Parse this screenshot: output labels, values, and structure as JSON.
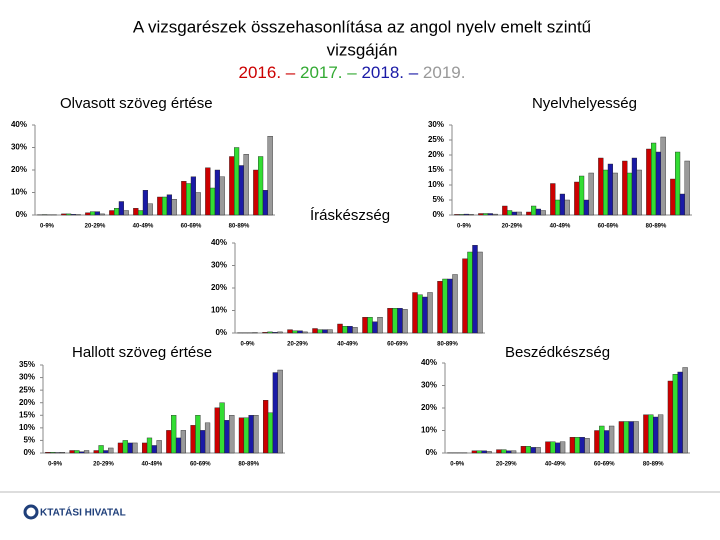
{
  "header": {
    "title_lines": [
      "A vizsgarészek összehasonlítása az angol nyelv emelt szintű",
      "vizsgáján"
    ],
    "years": [
      "2016. –",
      "2017. –",
      "2018. –",
      "2019."
    ]
  },
  "logo": "KTATÁSI HIVATAL",
  "chart_data": [
    {
      "type": "bar",
      "title": "Olvasott szöveg értése",
      "categories": [
        "0-9%",
        null,
        "20-29%",
        null,
        "40-49%",
        null,
        "60-69%",
        null,
        "80-89%",
        null
      ],
      "series": [
        {
          "color": "#cc0000",
          "values": [
            0.1,
            0.5,
            1,
            2,
            3,
            8,
            15,
            21,
            26,
            20
          ]
        },
        {
          "color": "#33dd33",
          "values": [
            0.2,
            0.5,
            1.5,
            3,
            2,
            8,
            14,
            12,
            30,
            26
          ]
        },
        {
          "color": "#1a1aa6",
          "values": [
            0.1,
            0.3,
            1.5,
            6,
            11,
            9,
            17,
            20,
            22,
            11
          ]
        },
        {
          "color": "#9a9a9a",
          "values": [
            0.1,
            0.2,
            0.5,
            2,
            5,
            7,
            10,
            17,
            27,
            35
          ]
        }
      ],
      "ylim": [
        0,
        40
      ],
      "yticks": [
        {
          "value": 0,
          "label": "0%"
        },
        {
          "value": 10,
          "label": "10%"
        },
        {
          "value": 20,
          "label": "20%"
        },
        {
          "value": 30,
          "label": "30%"
        },
        {
          "value": 40,
          "label": "40%"
        }
      ],
      "grid": false
    },
    {
      "type": "bar",
      "title": "Nyelvhelyesség",
      "categories": [
        "0-9%",
        null,
        "20-29%",
        null,
        "40-49%",
        null,
        "60-69%",
        null,
        "80-89%",
        null
      ],
      "series": [
        {
          "color": "#cc0000",
          "values": [
            0.2,
            0.5,
            3,
            1,
            10.5,
            11,
            19,
            18,
            22,
            12
          ]
        },
        {
          "color": "#33dd33",
          "values": [
            0.2,
            0.5,
            1.5,
            3,
            5,
            13,
            15,
            14,
            24,
            21
          ]
        },
        {
          "color": "#1a1aa6",
          "values": [
            0.3,
            0.5,
            1,
            2,
            7,
            5,
            17,
            19,
            21,
            7
          ]
        },
        {
          "color": "#9a9a9a",
          "values": [
            0.2,
            0.3,
            1,
            1.5,
            5,
            14,
            14,
            15,
            26,
            18
          ]
        }
      ],
      "ylim": [
        0,
        30
      ],
      "yticks": [
        {
          "value": 0,
          "label": "0%"
        },
        {
          "value": 5,
          "label": "5%"
        },
        {
          "value": 10,
          "label": "10%"
        },
        {
          "value": 15,
          "label": "15%"
        },
        {
          "value": 20,
          "label": "20%"
        },
        {
          "value": 25,
          "label": "25%"
        },
        {
          "value": 30,
          "label": "30%"
        }
      ],
      "grid": false
    },
    {
      "type": "bar",
      "title": "Íráskészség",
      "categories": [
        "0-9%",
        null,
        "20-29%",
        null,
        "40-49%",
        null,
        "60-69%",
        null,
        "80-89%",
        null
      ],
      "series": [
        {
          "color": "#cc0000",
          "values": [
            0.1,
            0.3,
            1.5,
            2,
            4,
            7,
            11,
            18,
            23,
            33
          ]
        },
        {
          "color": "#33dd33",
          "values": [
            0.1,
            0.5,
            1,
            1.5,
            3,
            7,
            11,
            17,
            24,
            36
          ]
        },
        {
          "color": "#1a1aa6",
          "values": [
            0.1,
            0.3,
            1,
            1.5,
            3,
            5,
            11,
            16,
            24,
            39
          ]
        },
        {
          "color": "#9a9a9a",
          "values": [
            0.2,
            0.5,
            0.5,
            1.5,
            2.5,
            7,
            10.5,
            18,
            26,
            36
          ]
        }
      ],
      "ylim": [
        0,
        40
      ],
      "yticks": [
        {
          "value": 0,
          "label": "0%"
        },
        {
          "value": 10,
          "label": "10%"
        },
        {
          "value": 20,
          "label": "20%"
        },
        {
          "value": 30,
          "label": "30%"
        },
        {
          "value": 40,
          "label": "40%"
        }
      ],
      "grid": false
    },
    {
      "type": "bar",
      "title": "Hallott szöveg értése",
      "categories": [
        "0-9%",
        null,
        "20-29%",
        null,
        "40-49%",
        null,
        "60-69%",
        null,
        "80-89%",
        null
      ],
      "series": [
        {
          "color": "#cc0000",
          "values": [
            0.3,
            1,
            1,
            4,
            4,
            9,
            11,
            18,
            14,
            21
          ]
        },
        {
          "color": "#33dd33",
          "values": [
            0.3,
            1,
            3,
            5,
            6,
            15,
            15,
            20,
            14,
            16
          ]
        },
        {
          "color": "#1a1aa6",
          "values": [
            0.2,
            0.5,
            1,
            4,
            3,
            6,
            9,
            13,
            15,
            32
          ]
        },
        {
          "color": "#9a9a9a",
          "values": [
            0.3,
            1,
            2,
            4,
            5,
            9,
            12,
            15,
            15,
            33
          ]
        }
      ],
      "ylim": [
        0,
        35
      ],
      "yticks": [
        {
          "value": 0,
          "label": "0%"
        },
        {
          "value": 5,
          "label": "5%"
        },
        {
          "value": 10,
          "label": "10%"
        },
        {
          "value": 15,
          "label": "15%"
        },
        {
          "value": 20,
          "label": "20%"
        },
        {
          "value": 25,
          "label": "25%"
        },
        {
          "value": 30,
          "label": "30%"
        },
        {
          "value": 35,
          "label": "35%"
        }
      ],
      "grid": false
    },
    {
      "type": "bar",
      "title": "Beszédkészség",
      "categories": [
        "0-9%",
        null,
        "20-29%",
        null,
        "40-49%",
        null,
        "60-69%",
        null,
        "80-89%",
        null
      ],
      "series": [
        {
          "color": "#cc0000",
          "values": [
            0.1,
            1,
            1.5,
            3,
            5,
            7,
            10,
            14,
            17,
            32
          ]
        },
        {
          "color": "#33dd33",
          "values": [
            0.1,
            1,
            1.5,
            3,
            5,
            7,
            12,
            14,
            17,
            35
          ]
        },
        {
          "color": "#1a1aa6",
          "values": [
            0.1,
            1,
            1,
            2.5,
            4.5,
            7,
            10,
            14,
            16,
            36
          ]
        },
        {
          "color": "#9a9a9a",
          "values": [
            0.1,
            0.7,
            1,
            2.5,
            5,
            6.5,
            12,
            14,
            17,
            38
          ]
        }
      ],
      "ylim": [
        0,
        40
      ],
      "yticks": [
        {
          "value": 0,
          "label": "0%"
        },
        {
          "value": 10,
          "label": "10%"
        },
        {
          "value": 20,
          "label": "20%"
        },
        {
          "value": 30,
          "label": "30%"
        },
        {
          "value": 40,
          "label": "40%"
        }
      ],
      "grid": false
    }
  ]
}
